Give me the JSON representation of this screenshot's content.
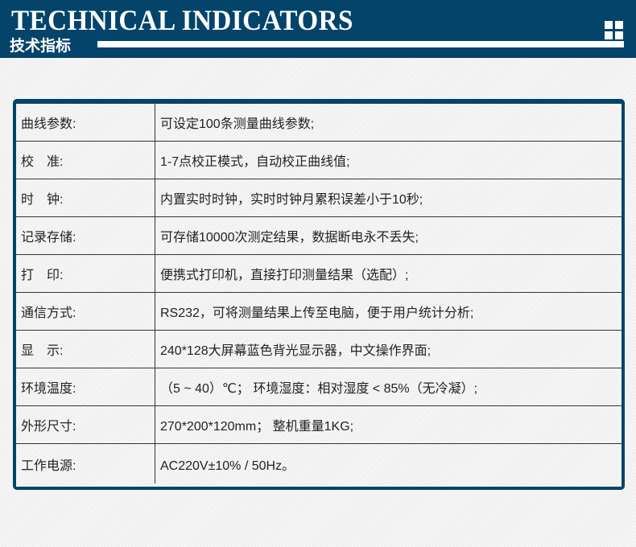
{
  "header": {
    "title_en": "TECHNICAL INDICATORS",
    "title_cn": "技术指标",
    "icon": "grid-icon",
    "color": "#04446a"
  },
  "specs": [
    {
      "label": "曲线参数:",
      "value": "可设定100条测量曲线参数;"
    },
    {
      "label": "校　准:",
      "value": "1-7点校正模式，自动校正曲线值;"
    },
    {
      "label": "时　钟:",
      "value": "内置实时时钟，实时时钟月累积误差小于10秒;"
    },
    {
      "label": "记录存储:",
      "value": "可存储10000次测定结果，数据断电永不丢失;"
    },
    {
      "label": "打　印:",
      "value": "便携式打印机，直接打印测量结果（选配）;"
    },
    {
      "label": "通信方式:",
      "value": "RS232，可将测量结果上传至电脑，便于用户统计分析;"
    },
    {
      "label": "显　示:",
      "value": "240*128大屏幕蓝色背光显示器，中文操作界面;"
    },
    {
      "label": "环境温度:",
      "value": "（5 ~ 40）℃； 环境湿度：相对湿度 < 85%（无冷凝）;"
    },
    {
      "label": "外形尺寸:",
      "value": "270*200*120mm； 整机重量1KG;"
    },
    {
      "label": "工作电源:",
      "value": "AC220V±10% / 50Hz。"
    }
  ]
}
